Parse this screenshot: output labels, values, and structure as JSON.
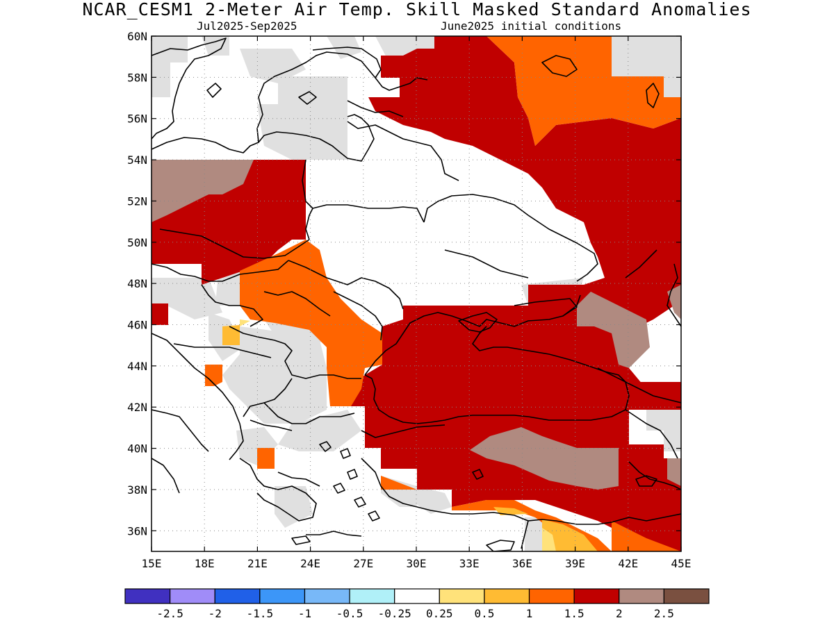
{
  "header": {
    "title": "NCAR_CESM1 2-Meter Air Temp. Skill Masked Standard Anomalies",
    "period": "Jul2025-Sep2025",
    "init": "June2025 initial conditions"
  },
  "map": {
    "lon_range": [
      15,
      45
    ],
    "lat_range": [
      35,
      60
    ],
    "x_ticks": [
      {
        "value": 15,
        "label": "15E"
      },
      {
        "value": 18,
        "label": "18E"
      },
      {
        "value": 21,
        "label": "21E"
      },
      {
        "value": 24,
        "label": "24E"
      },
      {
        "value": 27,
        "label": "27E"
      },
      {
        "value": 30,
        "label": "30E"
      },
      {
        "value": 33,
        "label": "33E"
      },
      {
        "value": 36,
        "label": "36E"
      },
      {
        "value": 39,
        "label": "39E"
      },
      {
        "value": 42,
        "label": "42E"
      },
      {
        "value": 45,
        "label": "45E"
      }
    ],
    "y_ticks": [
      {
        "value": 36,
        "label": "36N"
      },
      {
        "value": 38,
        "label": "38N"
      },
      {
        "value": 40,
        "label": "40N"
      },
      {
        "value": 42,
        "label": "42N"
      },
      {
        "value": 44,
        "label": "44N"
      },
      {
        "value": 46,
        "label": "46N"
      },
      {
        "value": 48,
        "label": "48N"
      },
      {
        "value": 50,
        "label": "50N"
      },
      {
        "value": 52,
        "label": "52N"
      },
      {
        "value": 54,
        "label": "54N"
      },
      {
        "value": 56,
        "label": "56N"
      },
      {
        "value": 58,
        "label": "58N"
      },
      {
        "value": 60,
        "label": "60N"
      }
    ],
    "grid": "dotted",
    "masked_color": "#e0e0e0",
    "regions": [
      {
        "level": "1.5-2",
        "color": "#c00000",
        "area": "central/eastern Europe, Ukraine, western Russia, Turkey, Caucasus"
      },
      {
        "level": "2-2.5",
        "color": "#b08a80",
        "area": "eastern Germany/Poland border, central Turkey, south of Caucasus"
      },
      {
        "level": "1-1.5",
        "color": "#ff6400",
        "area": "northwestern Russia, Hungary/Romania, southern Turkey"
      },
      {
        "level": "0.5-1",
        "color": "#ffbb33",
        "area": "northern Syria, Serbia fragment"
      },
      {
        "level": "0.25-0.5",
        "color": "#ffe27a",
        "area": "northern Syria"
      }
    ]
  },
  "colorbar": {
    "colors": [
      "#4030c0",
      "#a08cf8",
      "#2060e8",
      "#3c96f8",
      "#78b8f8",
      "#b0f0f8",
      "#ffffff",
      "#ffe27a",
      "#ffbb33",
      "#ff6400",
      "#c00000",
      "#b08a80",
      "#7a5040"
    ],
    "labels": [
      "-2.5",
      "-2",
      "-1.5",
      "-1",
      "-0.5",
      "-0.25",
      "0.25",
      "0.5",
      "1",
      "1.5",
      "2",
      "2.5"
    ]
  }
}
